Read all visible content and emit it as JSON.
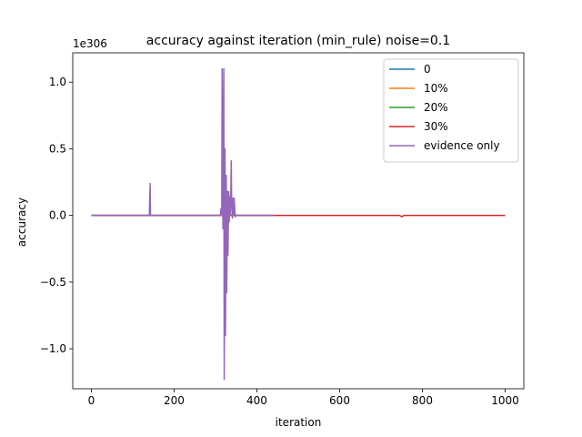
{
  "chart_data": {
    "type": "line",
    "title": "accuracy against iteration (min_rule) noise=0.1",
    "xlabel": "iteration",
    "ylabel": "accuracy",
    "y_offset_text": "1e306",
    "xlim": [
      -45,
      1045
    ],
    "ylim": [
      -1.3,
      1.22
    ],
    "x_ticks": [
      0,
      200,
      400,
      600,
      800,
      1000
    ],
    "x_tick_labels": [
      "0",
      "200",
      "400",
      "600",
      "800",
      "1000"
    ],
    "y_ticks": [
      -1.0,
      -0.5,
      0.0,
      0.5,
      1.0
    ],
    "y_tick_labels": [
      "−1.0",
      "−0.5",
      "0.0",
      "0.5",
      "1.0"
    ],
    "grid": false,
    "legend_position": "top-right",
    "series": [
      {
        "name": "0",
        "color": "#1f77b4",
        "x": [
          0,
          440
        ],
        "y": [
          0,
          0
        ]
      },
      {
        "name": "10%",
        "color": "#ff7f0e",
        "x": [
          0,
          440
        ],
        "y": [
          0,
          0
        ]
      },
      {
        "name": "20%",
        "color": "#2ca02c",
        "x": [
          0,
          440
        ],
        "y": [
          0,
          0
        ]
      },
      {
        "name": "30%",
        "color": "#d62728",
        "x": [
          0,
          440,
          745,
          750,
          755,
          1000
        ],
        "y": [
          0,
          0,
          0,
          -0.01,
          0,
          0
        ]
      },
      {
        "name": "evidence only",
        "color": "#9467bd",
        "x": [
          0,
          140,
          142,
          143,
          145,
          312,
          313,
          315,
          316,
          318,
          320,
          321,
          323,
          324,
          326,
          327,
          329,
          330,
          332,
          333,
          335,
          336,
          338,
          339,
          341,
          342,
          344,
          345,
          347,
          348,
          350,
          440
        ],
        "y": [
          0,
          0,
          0.24,
          0,
          0,
          0,
          0.05,
          0,
          1.1,
          -0.1,
          1.1,
          -1.23,
          0.5,
          -0.9,
          0.3,
          -0.58,
          0.18,
          -0.3,
          0.18,
          -0.05,
          0.14,
          0,
          0.41,
          0.1,
          -0.02,
          0.13,
          0,
          0.13,
          0.02,
          -0.01,
          0,
          0
        ]
      }
    ]
  }
}
